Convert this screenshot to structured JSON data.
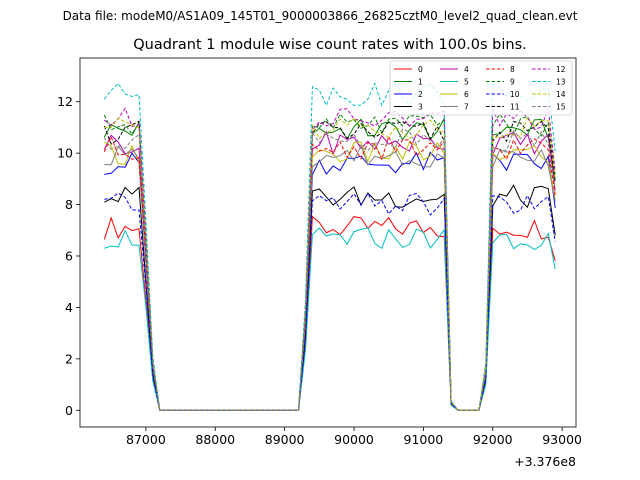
{
  "chart_data": {
    "type": "line",
    "suptitle": "Data file: modeM0/AS1A09_145T01_9000003866_26825cztM0_level2_quad_clean.evt",
    "title": "Quadrant 1 module wise count rates with 100.0s bins.",
    "xlabel": "",
    "ylabel": "",
    "offset_text": "+3.376e8",
    "offset": 337600000,
    "x_ticks": [
      87000,
      88000,
      89000,
      90000,
      91000,
      92000,
      93000
    ],
    "x_tick_labels": [
      "87000",
      "88000",
      "89000",
      "90000",
      "91000",
      "92000",
      "93000"
    ],
    "y_ticks": [
      0,
      2,
      4,
      6,
      8,
      10,
      12
    ],
    "y_tick_labels": [
      "0",
      "2",
      "4",
      "6",
      "8",
      "10",
      "12"
    ],
    "xlim": [
      86050,
      93200
    ],
    "ylim": [
      -0.65,
      13.7
    ],
    "grid": false,
    "legend_placement": "top-right",
    "bins": {
      "segments": [
        {
          "start": 86400,
          "end": 86900,
          "level": 1
        },
        {
          "start": 87000,
          "end": 87000,
          "level": 0.6
        },
        {
          "start": 87100,
          "end": 87100,
          "level": 0.17
        },
        {
          "start": 87200,
          "end": 89200,
          "level": 0
        },
        {
          "start": 89300,
          "end": 89300,
          "level": 0.35
        },
        {
          "start": 89400,
          "end": 91300,
          "level": 1
        },
        {
          "start": 91400,
          "end": 91400,
          "level": 0.03
        },
        {
          "start": 91500,
          "end": 91800,
          "level": 0
        },
        {
          "start": 91900,
          "end": 91900,
          "level": 0.15
        },
        {
          "start": 92000,
          "end": 92900,
          "level": 1
        }
      ],
      "last_bin_drop": 0.82
    },
    "series": [
      {
        "name": "0",
        "color": "#ff0000",
        "dash": "solid",
        "level": 7.1
      },
      {
        "name": "1",
        "color": "#008000",
        "dash": "solid",
        "level": 10.9
      },
      {
        "name": "2",
        "color": "#0000ff",
        "dash": "solid",
        "level": 9.6
      },
      {
        "name": "3",
        "color": "#000000",
        "dash": "solid",
        "level": 8.3
      },
      {
        "name": "4",
        "color": "#bf00bf",
        "dash": "solid",
        "level": 10.4
      },
      {
        "name": "5",
        "color": "#00bfbf",
        "dash": "solid",
        "level": 6.7
      },
      {
        "name": "6",
        "color": "#bfbf00",
        "dash": "solid",
        "level": 10.0
      },
      {
        "name": "7",
        "color": "#808080",
        "dash": "solid",
        "level": 9.9
      },
      {
        "name": "8",
        "color": "#ff0000",
        "dash": "dashed",
        "level": 10.2
      },
      {
        "name": "9",
        "color": "#008000",
        "dash": "dashed",
        "level": 11.1
      },
      {
        "name": "10",
        "color": "#0000ff",
        "dash": "dashed",
        "level": 8.0
      },
      {
        "name": "11",
        "color": "#000000",
        "dash": "dashed",
        "level": 10.8
      },
      {
        "name": "12",
        "color": "#bf00bf",
        "dash": "dashed",
        "level": 11.3
      },
      {
        "name": "13",
        "color": "#00bfbf",
        "dash": "dashed",
        "level": 12.3
      },
      {
        "name": "14",
        "color": "#bfbf00",
        "dash": "dashed",
        "level": 11.0
      },
      {
        "name": "15",
        "color": "#808080",
        "dash": "dashed",
        "level": 10.5
      }
    ]
  }
}
